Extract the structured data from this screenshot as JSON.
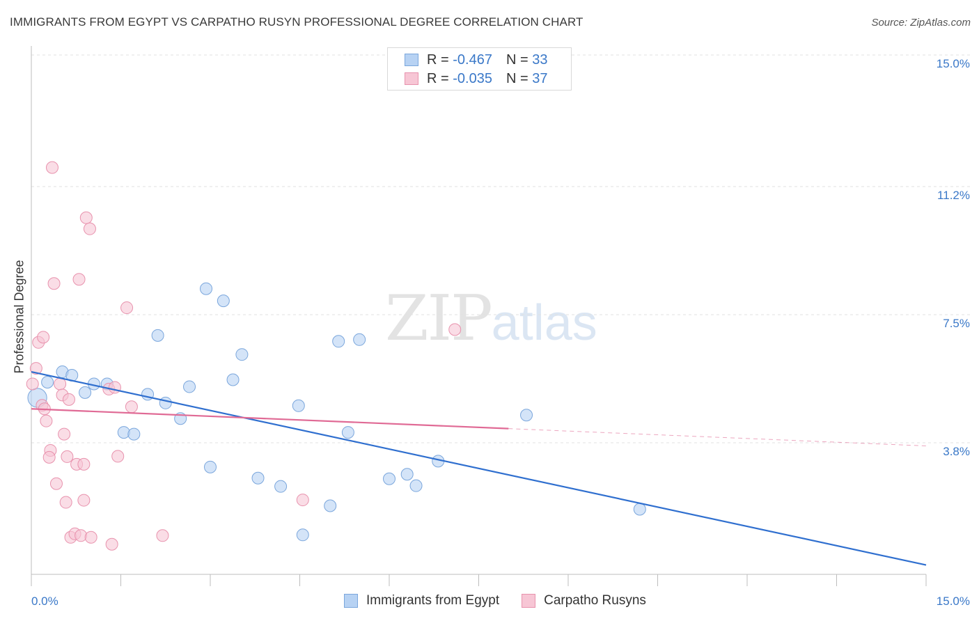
{
  "title": "IMMIGRANTS FROM EGYPT VS CARPATHO RUSYN PROFESSIONAL DEGREE CORRELATION CHART",
  "source": "Source: ZipAtlas.com",
  "watermark": {
    "zip": "ZIP",
    "atlas": "atlas"
  },
  "legend": {
    "rows": [
      {
        "r_label": "R =",
        "r_value": "-0.467",
        "n_label": "N =",
        "n_value": "33"
      },
      {
        "r_label": "R =",
        "r_value": "-0.035",
        "n_label": "N =",
        "n_value": "37"
      }
    ]
  },
  "colors": {
    "blue_fill": "#b7d2f3",
    "blue_stroke": "#7aa6dc",
    "blue_line": "#2f6fcf",
    "pink_fill": "#f7c6d5",
    "pink_stroke": "#e892ad",
    "pink_line": "#e06a95",
    "tick_label": "#3a78c8",
    "grid": "#e2e2e2"
  },
  "chart_data": {
    "type": "scatter",
    "title": "IMMIGRANTS FROM EGYPT VS CARPATHO RUSYN PROFESSIONAL DEGREE CORRELATION CHART",
    "xlabel": "",
    "ylabel": "Professional Degree",
    "xlim": [
      0,
      15
    ],
    "ylim": [
      0,
      15
    ],
    "x_tick_labels": [
      "0.0%",
      "15.0%"
    ],
    "y_ticks": [
      {
        "value": 3.8,
        "label": "3.8%"
      },
      {
        "value": 7.5,
        "label": "7.5%"
      },
      {
        "value": 11.2,
        "label": "11.2%"
      },
      {
        "value": 15.0,
        "label": "15.0%"
      }
    ],
    "grid": true,
    "legend_position": "bottom-center",
    "series": [
      {
        "name": "Immigrants from Egypt",
        "color": "#b7d2f3",
        "points": [
          [
            0.1,
            5.1,
            1.6
          ],
          [
            0.27,
            5.55,
            1.0
          ],
          [
            0.52,
            5.85,
            1.0
          ],
          [
            0.68,
            5.75,
            1.0
          ],
          [
            0.9,
            5.25,
            1.0
          ],
          [
            1.05,
            5.5,
            1.0
          ],
          [
            1.27,
            5.5,
            1.0
          ],
          [
            1.55,
            4.1,
            1.0
          ],
          [
            1.72,
            4.05,
            1.0
          ],
          [
            1.95,
            5.2,
            1.0
          ],
          [
            2.12,
            6.9,
            1.0
          ],
          [
            2.25,
            4.95,
            1.0
          ],
          [
            2.5,
            4.5,
            1.0
          ],
          [
            2.65,
            5.42,
            1.0
          ],
          [
            2.93,
            8.25,
            1.0
          ],
          [
            3.0,
            3.1,
            1.0
          ],
          [
            3.22,
            7.9,
            1.0
          ],
          [
            3.38,
            5.62,
            1.0
          ],
          [
            3.53,
            6.35,
            1.0
          ],
          [
            3.8,
            2.78,
            1.0
          ],
          [
            4.18,
            2.54,
            1.0
          ],
          [
            4.48,
            4.87,
            1.0
          ],
          [
            4.55,
            1.14,
            1.0
          ],
          [
            5.01,
            1.98,
            1.0
          ],
          [
            5.15,
            6.73,
            1.0
          ],
          [
            5.31,
            4.1,
            1.0
          ],
          [
            5.5,
            6.78,
            1.0
          ],
          [
            6.0,
            2.76,
            1.0
          ],
          [
            6.3,
            2.89,
            1.0
          ],
          [
            6.45,
            2.56,
            1.0
          ],
          [
            6.82,
            3.27,
            1.0
          ],
          [
            8.3,
            4.6,
            1.0
          ],
          [
            10.2,
            1.88,
            1.0
          ]
        ],
        "trend": {
          "x": [
            0.0,
            15.0
          ],
          "y": [
            5.85,
            0.27
          ],
          "solid_to": 15.0
        }
      },
      {
        "name": "Carpatho Rusyns",
        "color": "#f7c6d5",
        "points": [
          [
            0.02,
            5.5,
            1.0
          ],
          [
            0.08,
            5.95,
            1.0
          ],
          [
            0.12,
            6.7,
            1.0
          ],
          [
            0.18,
            4.88,
            1.0
          ],
          [
            0.22,
            4.78,
            1.0
          ],
          [
            0.2,
            6.85,
            1.0
          ],
          [
            0.25,
            4.43,
            1.0
          ],
          [
            0.32,
            3.58,
            1.0
          ],
          [
            0.3,
            3.38,
            1.0
          ],
          [
            0.35,
            11.75,
            1.0
          ],
          [
            0.38,
            8.4,
            1.0
          ],
          [
            0.42,
            2.62,
            1.0
          ],
          [
            0.48,
            5.5,
            1.0
          ],
          [
            0.52,
            5.18,
            1.0
          ],
          [
            0.55,
            4.05,
            1.0
          ],
          [
            0.58,
            2.08,
            1.0
          ],
          [
            0.6,
            3.4,
            1.0
          ],
          [
            0.63,
            5.05,
            1.0
          ],
          [
            0.66,
            1.07,
            1.0
          ],
          [
            0.73,
            1.17,
            1.0
          ],
          [
            0.76,
            3.18,
            1.0
          ],
          [
            0.8,
            8.52,
            1.0
          ],
          [
            0.83,
            1.12,
            1.0
          ],
          [
            0.88,
            3.18,
            1.0
          ],
          [
            0.88,
            2.14,
            1.0
          ],
          [
            0.92,
            10.3,
            1.0
          ],
          [
            0.98,
            9.98,
            1.0
          ],
          [
            1.0,
            1.07,
            1.0
          ],
          [
            1.3,
            5.35,
            1.0
          ],
          [
            1.35,
            0.87,
            1.0
          ],
          [
            1.4,
            5.4,
            1.0
          ],
          [
            1.45,
            3.41,
            1.0
          ],
          [
            1.6,
            7.7,
            1.0
          ],
          [
            1.68,
            4.84,
            1.0
          ],
          [
            2.2,
            1.12,
            1.0
          ],
          [
            4.55,
            2.15,
            1.0
          ],
          [
            7.1,
            7.07,
            1.0
          ]
        ],
        "trend": {
          "x": [
            0.0,
            15.0
          ],
          "y": [
            4.78,
            3.71
          ],
          "solid_to": 8.0
        }
      }
    ]
  }
}
